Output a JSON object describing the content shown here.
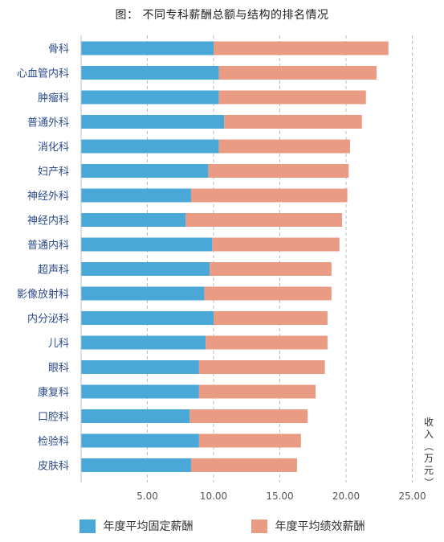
{
  "title": "图：  不同专科薪酬总额与结构的排名情况",
  "chart_data": {
    "type": "bar",
    "orientation": "horizontal",
    "stacked": true,
    "categories": [
      "骨科",
      "心血管内科",
      "肿瘤科",
      "普通外科",
      "消化科",
      "妇产科",
      "神经外科",
      "神经内科",
      "普通内科",
      "超声科",
      "影像放射科",
      "内分泌科",
      "儿科",
      "眼科",
      "康复科",
      "口腔科",
      "检验科",
      "皮肤科"
    ],
    "series": [
      {
        "name": "年度平均固定薪酬",
        "color": "#4aa8d8",
        "values": [
          10.0,
          10.4,
          10.4,
          10.8,
          10.4,
          9.6,
          8.3,
          7.9,
          9.9,
          9.7,
          9.3,
          10.0,
          9.4,
          8.9,
          8.9,
          8.2,
          8.9,
          8.3
        ]
      },
      {
        "name": "年度平均绩效薪酬",
        "color": "#e99c83",
        "values": [
          13.2,
          11.9,
          11.1,
          10.4,
          9.9,
          10.6,
          11.8,
          11.8,
          9.6,
          9.2,
          9.6,
          8.6,
          9.2,
          9.5,
          8.8,
          8.9,
          7.7,
          8.0
        ]
      }
    ],
    "x_ticks": [
      "5.00",
      "10.00",
      "15.00",
      "20.00",
      "25.00"
    ],
    "xlim": [
      0,
      25
    ],
    "xlabel": "收入（万元）",
    "grid": "vertical dashed",
    "legend_position": "bottom"
  }
}
